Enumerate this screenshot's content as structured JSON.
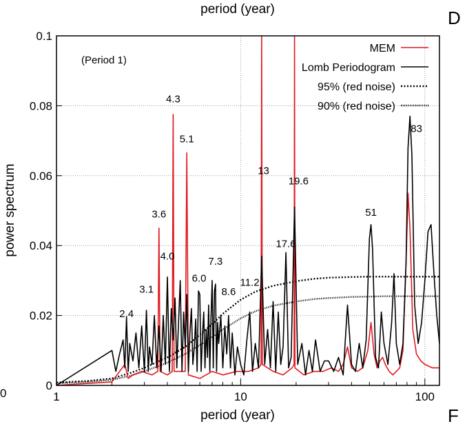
{
  "chart_data": {
    "type": "line",
    "xscale": "log",
    "xlim": [
      1,
      120
    ],
    "ylim": [
      0,
      0.1
    ],
    "xlabel": "period (year)",
    "ylabel": "power spectrum",
    "top_label": "period (year)",
    "panel_letter_top": "D",
    "panel_letter_bottom": "F",
    "left_edge_text": "0",
    "annotation": "(Period 1)",
    "grid": true,
    "legend_position": "top-right",
    "xticks": [
      {
        "v": 1,
        "t": "1"
      },
      {
        "v": 10,
        "t": "10"
      },
      {
        "v": 100,
        "t": "100"
      }
    ],
    "yticks": [
      {
        "v": 0,
        "t": "0"
      },
      {
        "v": 0.02,
        "t": "0.02"
      },
      {
        "v": 0.04,
        "t": "0.04"
      },
      {
        "v": 0.06,
        "t": "0.06"
      },
      {
        "v": 0.08,
        "t": "0.08"
      },
      {
        "v": 0.1,
        "t": "0.1"
      }
    ],
    "peak_labels": [
      {
        "text": "2.4",
        "x": 2.4,
        "y": 0.0195
      },
      {
        "text": "3.1",
        "x": 3.08,
        "y": 0.0265
      },
      {
        "text": "3.6",
        "x": 3.6,
        "y": 0.048
      },
      {
        "text": "4.0",
        "x": 4.0,
        "y": 0.036
      },
      {
        "text": "4.3",
        "x": 4.3,
        "y": 0.081
      },
      {
        "text": "5.1",
        "x": 5.1,
        "y": 0.0695
      },
      {
        "text": "6.0",
        "x": 5.95,
        "y": 0.0297
      },
      {
        "text": "7.3",
        "x": 7.3,
        "y": 0.0345
      },
      {
        "text": "8.6",
        "x": 8.6,
        "y": 0.0258
      },
      {
        "text": "11.2",
        "x": 11.2,
        "y": 0.0285
      },
      {
        "text": "13",
        "x": 13.3,
        "y": 0.0605
      },
      {
        "text": "17.6",
        "x": 17.6,
        "y": 0.0395
      },
      {
        "text": "19.6",
        "x": 20.6,
        "y": 0.0575
      },
      {
        "text": "51",
        "x": 51,
        "y": 0.0485
      },
      {
        "text": "83",
        "x": 90,
        "y": 0.0725
      }
    ],
    "series": [
      {
        "name": "MEM",
        "color": "#e0191f",
        "style": "solid",
        "x": [
          1,
          2.0,
          2.2,
          2.35,
          2.45,
          2.6,
          2.9,
          3.3,
          3.55,
          3.6,
          3.65,
          4.0,
          4.25,
          4.3,
          4.35,
          4.7,
          5.0,
          5.1,
          5.2,
          6.0,
          7.0,
          8.0,
          9.5,
          11.0,
          12.5,
          12.9,
          13.0,
          13.1,
          15.0,
          17.0,
          19.0,
          19.5,
          19.6,
          19.7,
          22,
          25,
          28,
          31,
          34,
          36,
          38,
          40,
          43,
          46,
          49,
          51,
          53,
          55,
          57,
          59,
          61,
          64,
          67,
          70,
          73,
          76,
          79,
          81,
          83,
          86,
          90,
          95,
          100,
          110,
          120
        ],
        "y": [
          0,
          0.001,
          0.004,
          0.006,
          0.002,
          0.003,
          0.004,
          0.003,
          0.004,
          0.045,
          0.004,
          0.003,
          0.004,
          0.0775,
          0.004,
          0.004,
          0.004,
          0.0665,
          0.003,
          0.002,
          0.004,
          0.003,
          0.004,
          0.004,
          0.005,
          0.006,
          0.1,
          0.006,
          0.004,
          0.003,
          0.005,
          0.006,
          0.1,
          0.005,
          0.003,
          0.004,
          0.004,
          0.005,
          0.004,
          0.006,
          0.011,
          0.005,
          0.004,
          0.005,
          0.01,
          0.018,
          0.009,
          0.005,
          0.007,
          0.008,
          0.006,
          0.004,
          0.003,
          0.004,
          0.005,
          0.01,
          0.035,
          0.055,
          0.045,
          0.016,
          0.009,
          0.007,
          0.006,
          0.005,
          0.005
        ]
      },
      {
        "name": "Lomb Periodogram",
        "color": "#000000",
        "style": "solid",
        "x": [
          1,
          2.0,
          2.1,
          2.2,
          2.3,
          2.35,
          2.4,
          2.45,
          2.5,
          2.6,
          2.7,
          2.8,
          2.9,
          3.0,
          3.08,
          3.15,
          3.2,
          3.3,
          3.4,
          3.5,
          3.6,
          3.7,
          3.8,
          3.9,
          4.0,
          4.1,
          4.2,
          4.3,
          4.4,
          4.5,
          4.6,
          4.7,
          4.8,
          4.9,
          5.0,
          5.1,
          5.2,
          5.3,
          5.4,
          5.5,
          5.6,
          5.7,
          5.8,
          5.9,
          6.0,
          6.1,
          6.2,
          6.3,
          6.4,
          6.5,
          6.6,
          6.7,
          6.8,
          6.9,
          7.0,
          7.1,
          7.2,
          7.3,
          7.4,
          7.5,
          7.6,
          7.8,
          8.0,
          8.2,
          8.4,
          8.6,
          8.8,
          9.0,
          9.3,
          9.6,
          10.0,
          10.4,
          10.8,
          11.2,
          11.6,
          12.0,
          12.5,
          13.0,
          13.5,
          14.0,
          14.5,
          15.0,
          15.5,
          16.0,
          16.5,
          17.0,
          17.6,
          18.2,
          18.8,
          19.6,
          20.4,
          21.5,
          22.5,
          23.5,
          24.5,
          25.5,
          27.0,
          28.5,
          30.0,
          32,
          34,
          36,
          38,
          40,
          42,
          44,
          46,
          48,
          50,
          51,
          52,
          54,
          56,
          58,
          60,
          63,
          66,
          68,
          70,
          73,
          76,
          79,
          81,
          83,
          85,
          88,
          92,
          96,
          100,
          104,
          108,
          112,
          116,
          120
        ],
        "y": [
          0,
          0.01,
          0.004,
          0.009,
          0.013,
          0.005,
          0.0195,
          0.004,
          0.012,
          0.007,
          0.015,
          0.005,
          0.017,
          0.004,
          0.0215,
          0.004,
          0.011,
          0.006,
          0.02,
          0.005,
          0.017,
          0.004,
          0.02,
          0.006,
          0.031,
          0.004,
          0.022,
          0.013,
          0.025,
          0.005,
          0.018,
          0.03,
          0.004,
          0.021,
          0.011,
          0.026,
          0.004,
          0.015,
          0.022,
          0.006,
          0.011,
          0.019,
          0.004,
          0.027,
          0.026,
          0.004,
          0.014,
          0.021,
          0.005,
          0.016,
          0.008,
          0.023,
          0.004,
          0.019,
          0.03,
          0.005,
          0.027,
          0.029,
          0.004,
          0.018,
          0.012,
          0.02,
          0.005,
          0.017,
          0.009,
          0.02,
          0.005,
          0.015,
          0.003,
          0.011,
          0.006,
          0.003,
          0.013,
          0.021,
          0.004,
          0.012,
          0.005,
          0.037,
          0.006,
          0.016,
          0.005,
          0.024,
          0.004,
          0.021,
          0.006,
          0.011,
          0.038,
          0.005,
          0.008,
          0.051,
          0.006,
          0.012,
          0.003,
          0.01,
          0.004,
          0.013,
          0.004,
          0.007,
          0.007,
          0.004,
          0.008,
          0.003,
          0.023,
          0.006,
          0.004,
          0.012,
          0.005,
          0.013,
          0.042,
          0.046,
          0.039,
          0.008,
          0.005,
          0.021,
          0.012,
          0.006,
          0.018,
          0.032,
          0.012,
          0.006,
          0.012,
          0.035,
          0.068,
          0.077,
          0.066,
          0.023,
          0.012,
          0.018,
          0.03,
          0.044,
          0.046,
          0.032,
          0.02,
          0.012
        ]
      },
      {
        "name": "95% (red noise)",
        "color": "#000000",
        "style": "dotted-bold",
        "x": [
          1,
          1.5,
          2,
          2.5,
          3,
          4,
          5,
          6,
          7,
          8,
          10,
          12,
          15,
          20,
          25,
          30,
          40,
          50,
          60,
          80,
          100,
          120
        ],
        "y": [
          0.0008,
          0.0013,
          0.002,
          0.0035,
          0.005,
          0.008,
          0.011,
          0.0145,
          0.0175,
          0.0205,
          0.0245,
          0.0268,
          0.0285,
          0.0298,
          0.0305,
          0.0308,
          0.031,
          0.0311,
          0.0311,
          0.0311,
          0.0311,
          0.0311
        ]
      },
      {
        "name": "90% (red noise)",
        "color": "#000000",
        "style": "dotted",
        "x": [
          1,
          1.5,
          2,
          2.5,
          3,
          4,
          5,
          6,
          7,
          8,
          10,
          12,
          15,
          20,
          25,
          30,
          40,
          50,
          60,
          80,
          100,
          120
        ],
        "y": [
          0.0006,
          0.001,
          0.0016,
          0.0027,
          0.004,
          0.0065,
          0.009,
          0.0115,
          0.0138,
          0.016,
          0.0192,
          0.0212,
          0.0228,
          0.024,
          0.0247,
          0.025,
          0.0253,
          0.0254,
          0.0255,
          0.0255,
          0.0255,
          0.0255
        ]
      }
    ]
  }
}
